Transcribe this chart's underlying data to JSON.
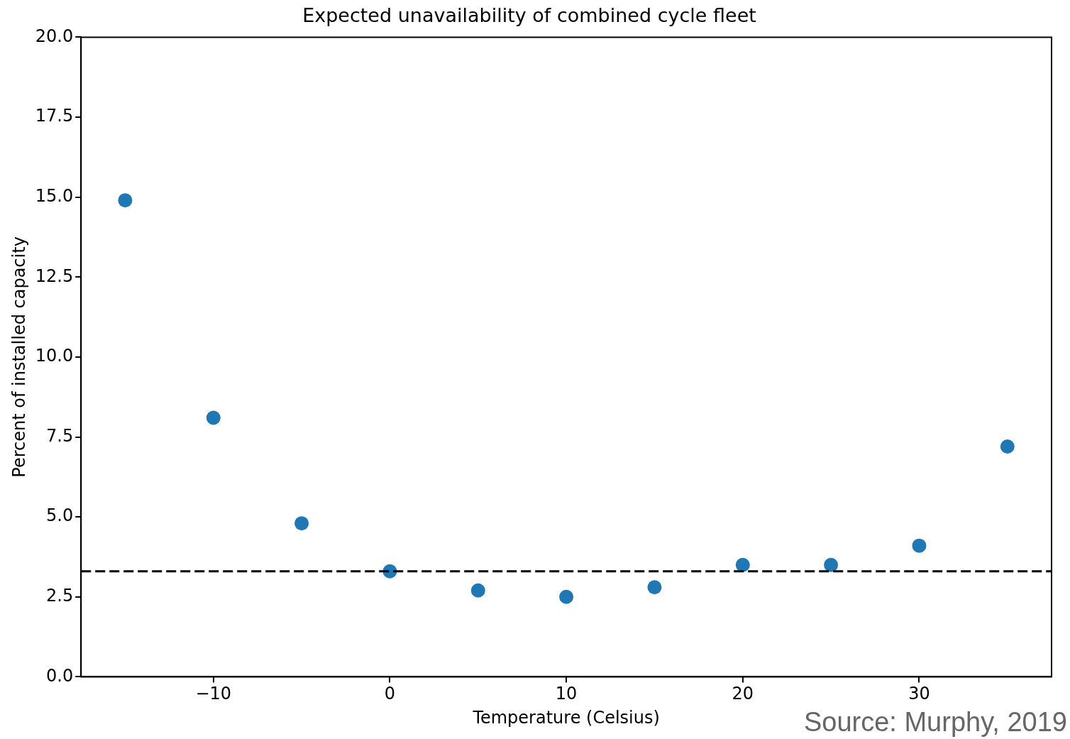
{
  "chart_data": {
    "type": "scatter",
    "title": "Expected unavailability of combined cycle fleet",
    "xlabel": "Temperature (Celsius)",
    "ylabel": "Percent of installed capacity",
    "x": [
      -15,
      -10,
      -5,
      0,
      5,
      10,
      15,
      20,
      25,
      30,
      35
    ],
    "series": [
      {
        "color": "#1f77b4",
        "values": [
          14.9,
          8.1,
          4.8,
          3.3,
          2.7,
          2.5,
          2.8,
          3.5,
          3.5,
          4.1,
          7.2
        ]
      }
    ],
    "xlim": [
      -17.5,
      37.5
    ],
    "xticks": [
      {
        "value": -10,
        "label": "−10"
      },
      0,
      10,
      20,
      30
    ],
    "ylim": [
      0,
      20
    ],
    "yticks": [
      {
        "value": 0,
        "label": "0.0"
      },
      {
        "value": 2.5,
        "label": "2.5"
      },
      {
        "value": 5,
        "label": "5.0"
      },
      {
        "value": 7.5,
        "label": "7.5"
      },
      {
        "value": 10,
        "label": "10.0"
      },
      {
        "value": 12.5,
        "label": "12.5"
      },
      {
        "value": 15,
        "label": "15.0"
      },
      {
        "value": 17.5,
        "label": "17.5"
      },
      {
        "value": 20,
        "label": "20.0"
      }
    ],
    "ref_lines": [
      {
        "axis": "y",
        "value": 3.3,
        "color": "#000000",
        "line_style": "dashed"
      }
    ],
    "annotations": [
      "Source: Murphy, 2019"
    ],
    "grid": false,
    "legend": false,
    "marker": "circle"
  }
}
